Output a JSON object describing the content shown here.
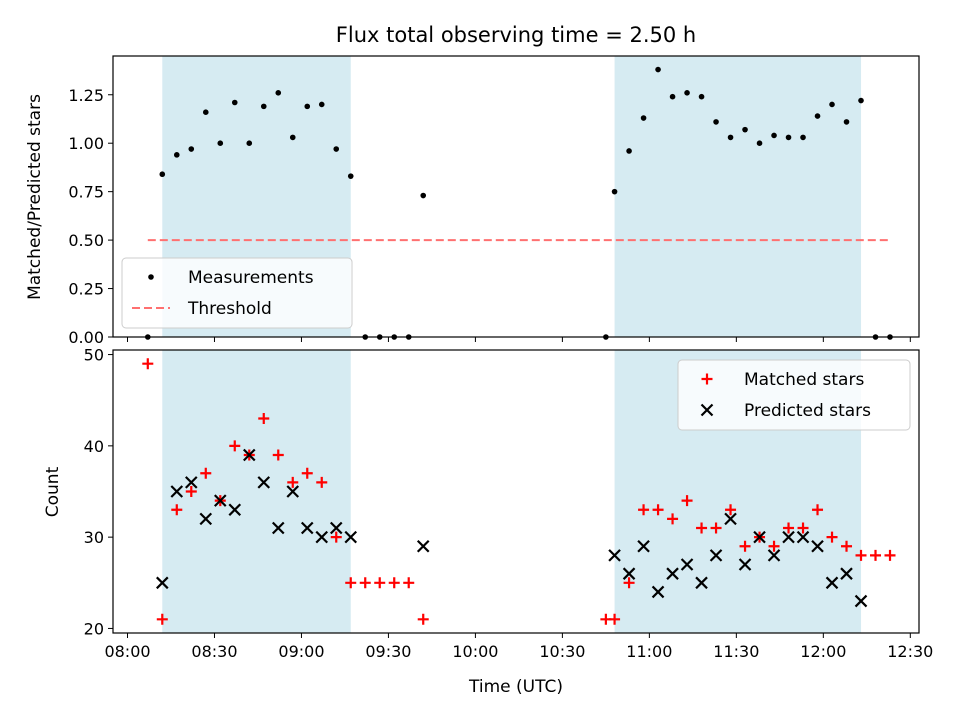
{
  "figure": {
    "title": "Flux total observing time = 2.50 h",
    "xlabel": "Time (UTC)",
    "top_ylabel": "Matched/Predicted stars",
    "bottom_ylabel": "Count"
  },
  "chart_data": [
    {
      "type": "scatter",
      "title": "Flux total observing time = 2.50 h",
      "ylabel": "Matched/Predicted stars",
      "xlim": [
        "07:55",
        "12:33"
      ],
      "ylim": [
        0,
        1.45
      ],
      "xticks": [
        "08:00",
        "08:30",
        "09:00",
        "09:30",
        "10:00",
        "10:30",
        "11:00",
        "11:30",
        "12:00",
        "12:30"
      ],
      "yticks": [
        "0.00",
        "0.25",
        "0.50",
        "0.75",
        "1.00",
        "1.25"
      ],
      "grid": false,
      "legend_position": "lower-left",
      "shaded_intervals": [
        [
          "08:12",
          "09:17"
        ],
        [
          "10:48",
          "12:13"
        ]
      ],
      "series": [
        {
          "name": "Measurements",
          "kind": "scatter",
          "color": "#000000",
          "points": [
            [
              "08:07",
              0.0
            ],
            [
              "08:12",
              0.84
            ],
            [
              "08:17",
              0.94
            ],
            [
              "08:22",
              0.97
            ],
            [
              "08:27",
              1.16
            ],
            [
              "08:32",
              1.0
            ],
            [
              "08:37",
              1.21
            ],
            [
              "08:42",
              1.0
            ],
            [
              "08:47",
              1.19
            ],
            [
              "08:52",
              1.26
            ],
            [
              "08:57",
              1.03
            ],
            [
              "09:02",
              1.19
            ],
            [
              "09:07",
              1.2
            ],
            [
              "09:12",
              0.97
            ],
            [
              "09:17",
              0.83
            ],
            [
              "09:22",
              0.0
            ],
            [
              "09:27",
              0.0
            ],
            [
              "09:32",
              0.0
            ],
            [
              "09:37",
              0.0
            ],
            [
              "09:42",
              0.73
            ],
            [
              "10:45",
              0.0
            ],
            [
              "10:48",
              0.75
            ],
            [
              "10:53",
              0.96
            ],
            [
              "10:58",
              1.13
            ],
            [
              "11:03",
              1.38
            ],
            [
              "11:08",
              1.24
            ],
            [
              "11:13",
              1.26
            ],
            [
              "11:18",
              1.24
            ],
            [
              "11:23",
              1.11
            ],
            [
              "11:28",
              1.03
            ],
            [
              "11:33",
              1.07
            ],
            [
              "11:38",
              1.0
            ],
            [
              "11:43",
              1.04
            ],
            [
              "11:48",
              1.03
            ],
            [
              "11:53",
              1.03
            ],
            [
              "11:58",
              1.14
            ],
            [
              "12:03",
              1.2
            ],
            [
              "12:08",
              1.11
            ],
            [
              "12:13",
              1.22
            ],
            [
              "12:18",
              0.0
            ],
            [
              "12:23",
              0.0
            ]
          ]
        },
        {
          "name": "Threshold",
          "kind": "dashed-line",
          "color": "#ff7070",
          "points": [
            [
              "08:07",
              0.5
            ],
            [
              "12:23",
              0.5
            ]
          ]
        }
      ]
    },
    {
      "type": "scatter",
      "xlabel": "Time (UTC)",
      "ylabel": "Count",
      "xlim": [
        "07:55",
        "12:33"
      ],
      "ylim": [
        19.5,
        50.5
      ],
      "xticks": [
        "08:00",
        "08:30",
        "09:00",
        "09:30",
        "10:00",
        "10:30",
        "11:00",
        "11:30",
        "12:00",
        "12:30"
      ],
      "yticks": [
        "20",
        "30",
        "40",
        "50"
      ],
      "grid": false,
      "legend_position": "upper-right",
      "shaded_intervals": [
        [
          "08:12",
          "09:17"
        ],
        [
          "10:48",
          "12:13"
        ]
      ],
      "series": [
        {
          "name": "Matched stars",
          "marker": "plus",
          "color": "#ff0000",
          "points": [
            [
              "08:07",
              49
            ],
            [
              "08:12",
              21
            ],
            [
              "08:17",
              33
            ],
            [
              "08:22",
              35
            ],
            [
              "08:27",
              37
            ],
            [
              "08:32",
              34
            ],
            [
              "08:37",
              40
            ],
            [
              "08:42",
              39
            ],
            [
              "08:47",
              43
            ],
            [
              "08:52",
              39
            ],
            [
              "08:57",
              36
            ],
            [
              "09:02",
              37
            ],
            [
              "09:07",
              36
            ],
            [
              "09:12",
              30
            ],
            [
              "09:17",
              25
            ],
            [
              "09:22",
              25
            ],
            [
              "09:27",
              25
            ],
            [
              "09:32",
              25
            ],
            [
              "09:37",
              25
            ],
            [
              "09:42",
              21
            ],
            [
              "10:45",
              21
            ],
            [
              "10:48",
              21
            ],
            [
              "10:53",
              25
            ],
            [
              "10:58",
              33
            ],
            [
              "11:03",
              33
            ],
            [
              "11:08",
              32
            ],
            [
              "11:13",
              34
            ],
            [
              "11:18",
              31
            ],
            [
              "11:23",
              31
            ],
            [
              "11:28",
              33
            ],
            [
              "11:33",
              29
            ],
            [
              "11:38",
              30
            ],
            [
              "11:43",
              29
            ],
            [
              "11:48",
              31
            ],
            [
              "11:53",
              31
            ],
            [
              "11:58",
              33
            ],
            [
              "12:03",
              30
            ],
            [
              "12:08",
              29
            ],
            [
              "12:13",
              28
            ],
            [
              "12:18",
              28
            ],
            [
              "12:23",
              28
            ]
          ]
        },
        {
          "name": "Predicted stars",
          "marker": "x",
          "color": "#000000",
          "points": [
            [
              "08:12",
              25
            ],
            [
              "08:17",
              35
            ],
            [
              "08:22",
              36
            ],
            [
              "08:27",
              32
            ],
            [
              "08:32",
              34
            ],
            [
              "08:37",
              33
            ],
            [
              "08:42",
              39
            ],
            [
              "08:47",
              36
            ],
            [
              "08:52",
              31
            ],
            [
              "08:57",
              35
            ],
            [
              "09:02",
              31
            ],
            [
              "09:07",
              30
            ],
            [
              "09:12",
              31
            ],
            [
              "09:17",
              30
            ],
            [
              "09:42",
              29
            ],
            [
              "10:48",
              28
            ],
            [
              "10:53",
              26
            ],
            [
              "10:58",
              29
            ],
            [
              "11:03",
              24
            ],
            [
              "11:08",
              26
            ],
            [
              "11:13",
              27
            ],
            [
              "11:18",
              25
            ],
            [
              "11:23",
              28
            ],
            [
              "11:28",
              32
            ],
            [
              "11:33",
              27
            ],
            [
              "11:38",
              30
            ],
            [
              "11:43",
              28
            ],
            [
              "11:48",
              30
            ],
            [
              "11:53",
              30
            ],
            [
              "11:58",
              29
            ],
            [
              "12:03",
              25
            ],
            [
              "12:08",
              26
            ],
            [
              "12:13",
              23
            ]
          ]
        }
      ]
    }
  ]
}
